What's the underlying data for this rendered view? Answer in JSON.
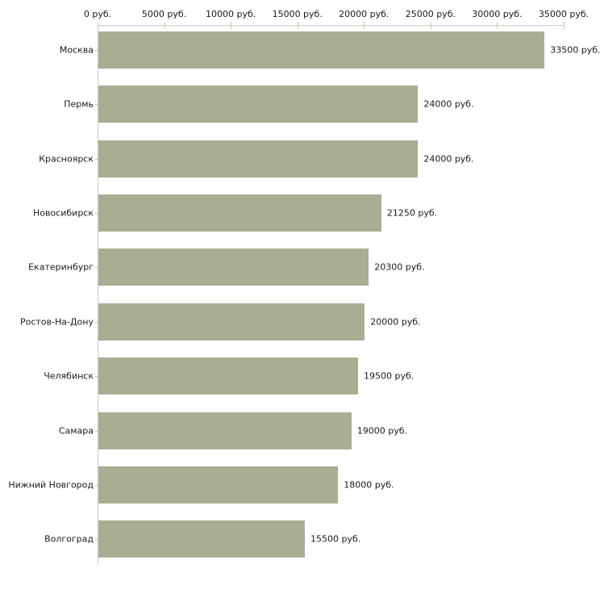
{
  "chart_data": {
    "type": "bar",
    "orientation": "horizontal",
    "title": "",
    "categories": [
      "Москва",
      "Пермь",
      "Красноярск",
      "Новосибирск",
      "Екатеринбург",
      "Ростов-На-Дону",
      "Челябинск",
      "Самара",
      "Нижний Новгород",
      "Волгоград"
    ],
    "values": [
      33500,
      24000,
      24000,
      21250,
      20300,
      20000,
      19500,
      19000,
      18000,
      15500
    ],
    "value_labels": [
      "33500 руб.",
      "24000 руб.",
      "24000 руб.",
      "21250 руб.",
      "20300 руб.",
      "20000 руб.",
      "19500 руб.",
      "19000 руб.",
      "18000 руб.",
      "15500 руб."
    ],
    "x_axis": {
      "position": "top",
      "min": 0,
      "max": 35000,
      "ticks": [
        0,
        5000,
        10000,
        15000,
        20000,
        25000,
        30000,
        35000
      ],
      "tick_labels": [
        "0 руб.",
        "5000 руб.",
        "10000 руб.",
        "15000 руб.",
        "20000 руб.",
        "25000 руб.",
        "30000 руб.",
        "35000 руб."
      ]
    },
    "grid": false,
    "legend": false,
    "colors": {
      "bar": "#a9ae93",
      "axis_line": "#cbcbcb",
      "tick_mark": "#c8c8a0",
      "label_text": "#1a1a1a",
      "background": "#ffffff"
    }
  }
}
